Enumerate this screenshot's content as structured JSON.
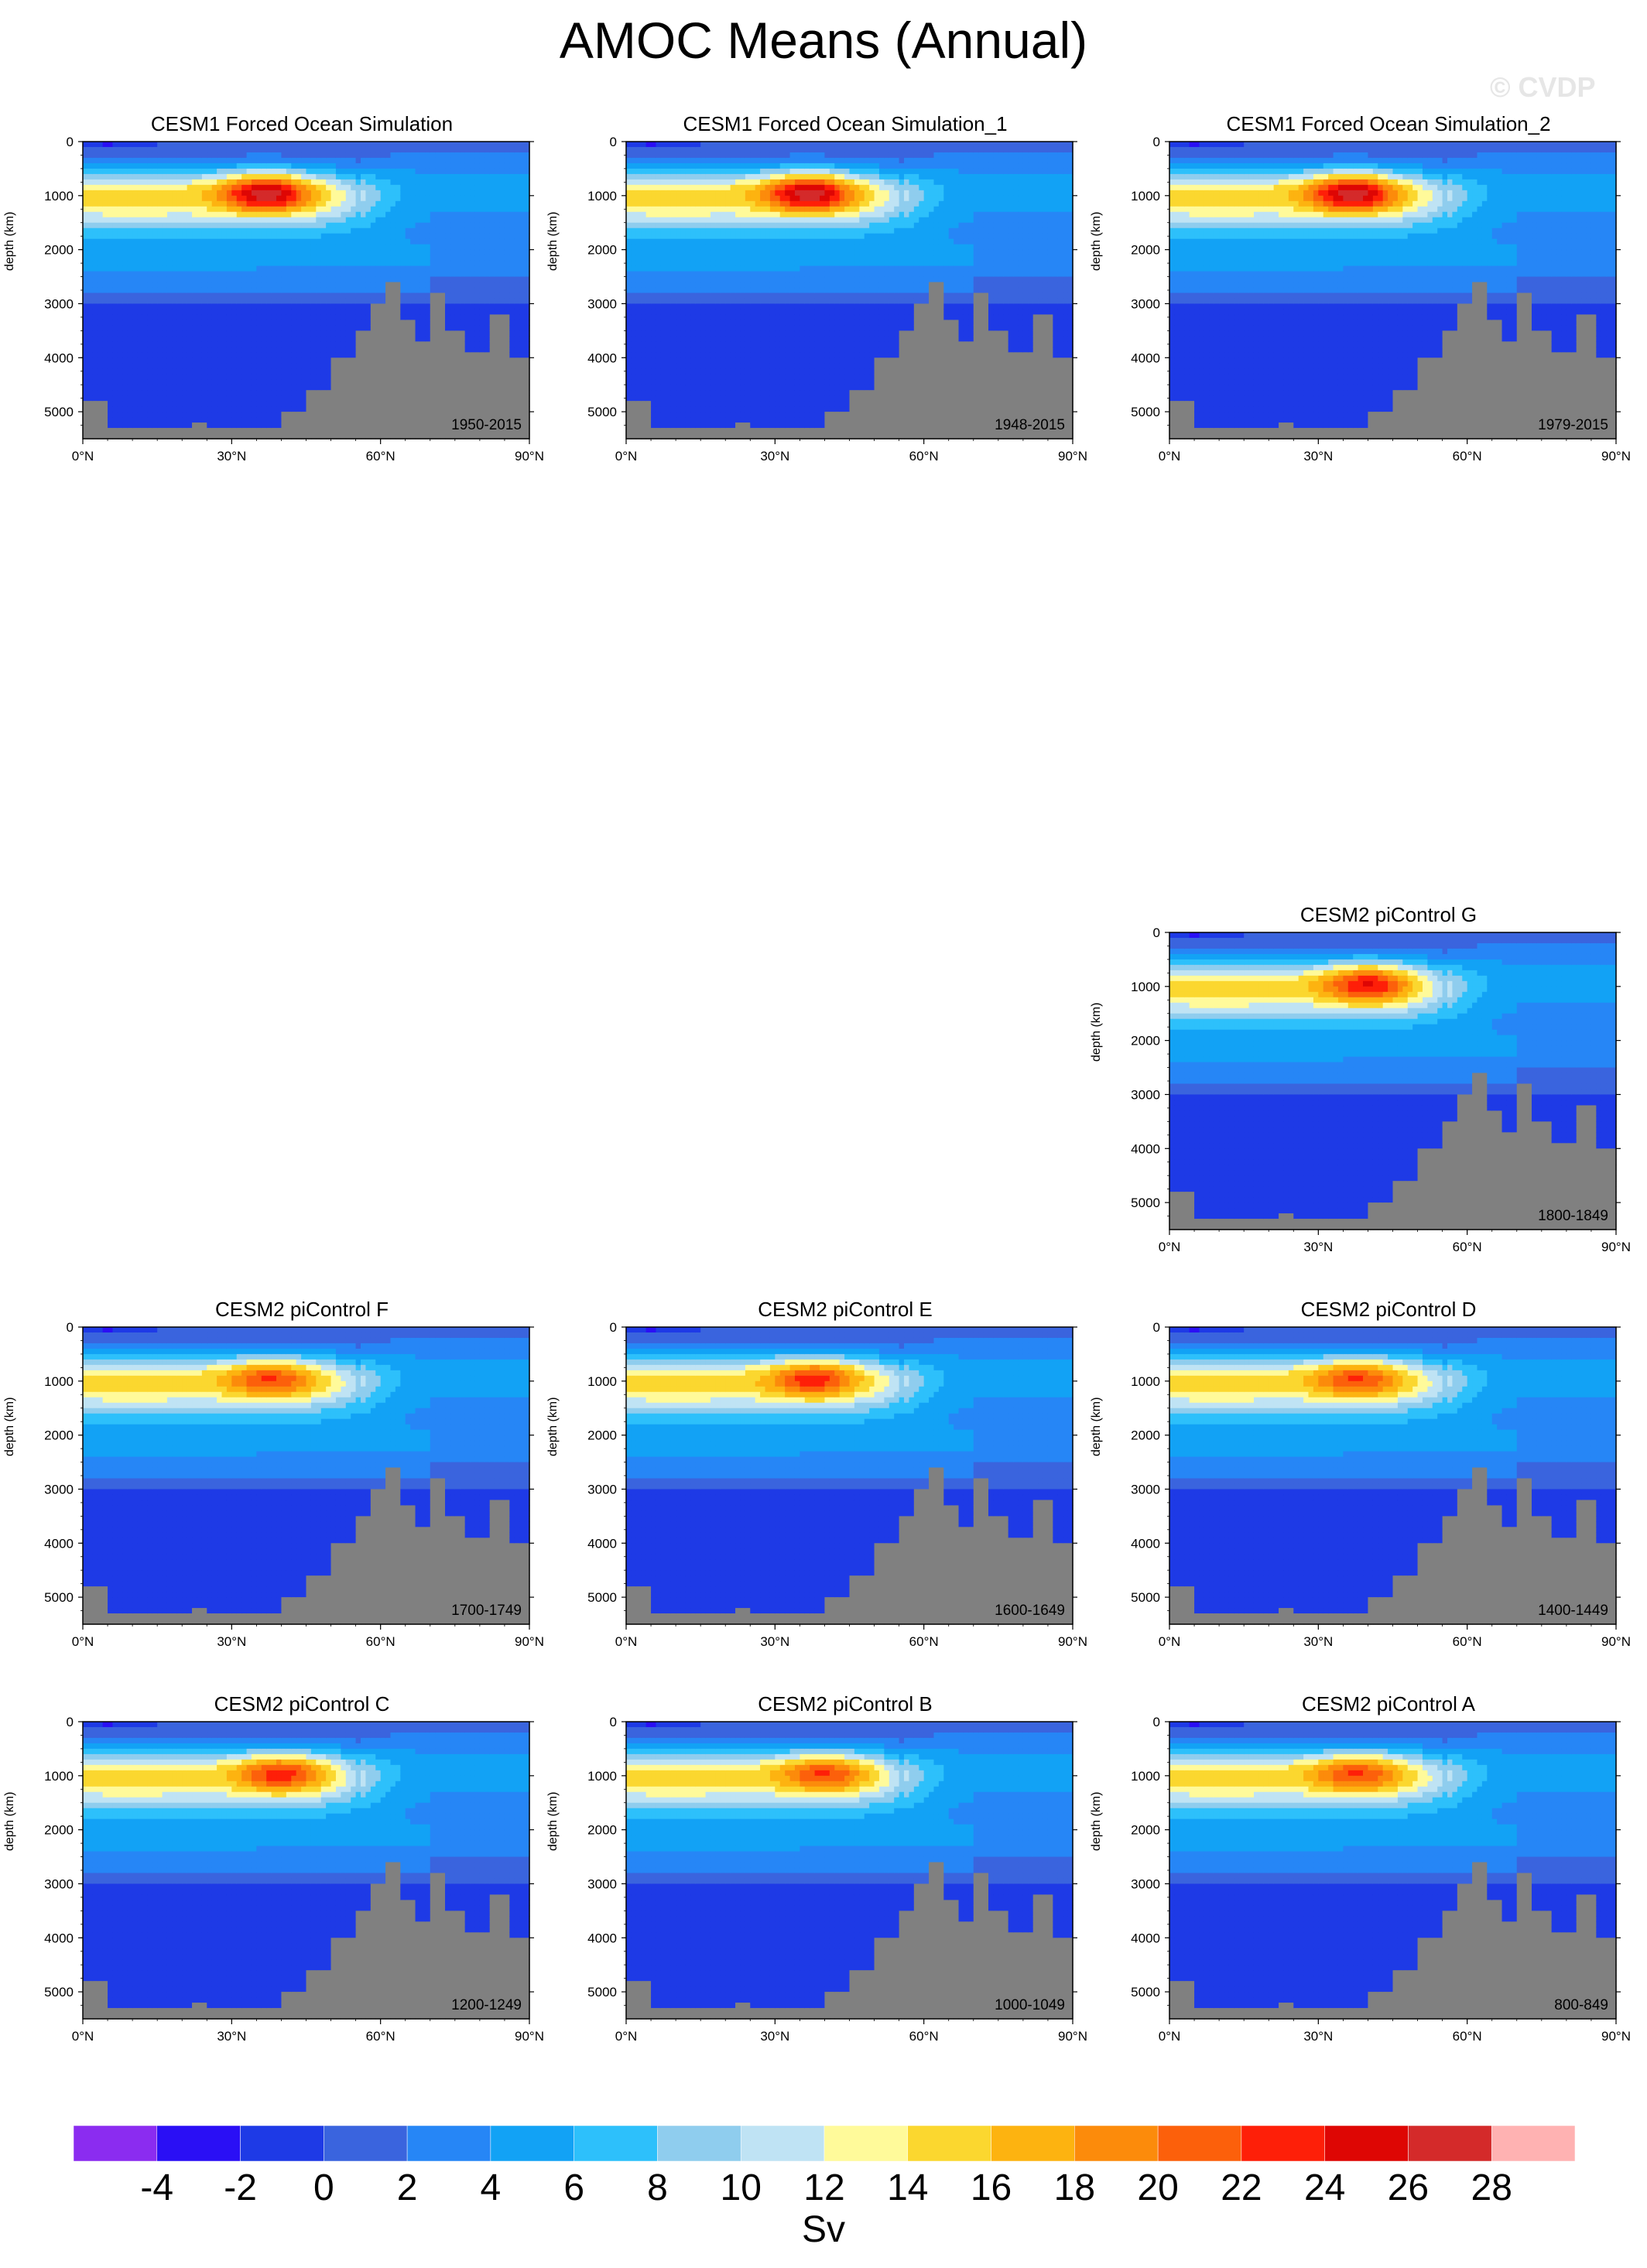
{
  "title": "AMOC Means (Annual)",
  "watermark": "© CVDP",
  "colors": {
    "land": "#808080",
    "levels": [
      "#8b2cf0",
      "#2a0ff5",
      "#1e3ae6",
      "#3a64de",
      "#2686f6",
      "#12a2f5",
      "#2dc0fb",
      "#8fcdee",
      "#bfe3f4",
      "#fffa9a",
      "#fbd72f",
      "#fdb310",
      "#fc8b0b",
      "#fc600b",
      "#fe1f08",
      "#de0604",
      "#d42a2a",
      "#ffb2b2"
    ]
  },
  "chart_data": [
    {
      "type": "contour",
      "title": "CESM1 Forced Ocean Simulation",
      "period": "1950-2015",
      "max": 28,
      "core_lat": 37,
      "ylabel": "depth (km)",
      "xlabel": "",
      "xticks": [
        "0°N",
        "30°N",
        "60°N",
        "90°N"
      ],
      "yticks": [
        "0",
        "1000",
        "2000",
        "3000",
        "4000",
        "5000"
      ]
    },
    {
      "type": "contour",
      "title": "CESM1 Forced Ocean Simulation_1",
      "period": "1948-2015",
      "max": 28,
      "core_lat": 37,
      "ylabel": "depth (km)",
      "xlabel": "",
      "xticks": [
        "0°N",
        "30°N",
        "60°N",
        "90°N"
      ],
      "yticks": [
        "0",
        "1000",
        "2000",
        "3000",
        "4000",
        "5000"
      ]
    },
    {
      "type": "contour",
      "title": "CESM1 Forced Ocean Simulation_2",
      "period": "1979-2015",
      "max": 28,
      "core_lat": 37,
      "ylabel": "depth (km)",
      "xlabel": "",
      "xticks": [
        "0°N",
        "30°N",
        "60°N",
        "90°N"
      ],
      "yticks": [
        "0",
        "1000",
        "2000",
        "3000",
        "4000",
        "5000"
      ]
    },
    {
      "type": "contour",
      "title": "CESM2 piControl G",
      "period": "1800-1849",
      "max": 25,
      "core_lat": 40,
      "ylabel": "depth (km)",
      "xlabel": "",
      "xticks": [
        "0°N",
        "30°N",
        "60°N",
        "90°N"
      ],
      "yticks": [
        "0",
        "1000",
        "2000",
        "3000",
        "4000",
        "5000"
      ]
    },
    {
      "type": "contour",
      "title": "CESM2 piControl F",
      "period": "1700-1749",
      "max": 23,
      "core_lat": 38,
      "ylabel": "depth (km)",
      "xlabel": "",
      "xticks": [
        "0°N",
        "30°N",
        "60°N",
        "90°N"
      ],
      "yticks": [
        "0",
        "1000",
        "2000",
        "3000",
        "4000",
        "5000"
      ]
    },
    {
      "type": "contour",
      "title": "CESM2 piControl E",
      "period": "1600-1649",
      "max": 24,
      "core_lat": 38,
      "ylabel": "depth (km)",
      "xlabel": "",
      "xticks": [
        "0°N",
        "30°N",
        "60°N",
        "90°N"
      ],
      "yticks": [
        "0",
        "1000",
        "2000",
        "3000",
        "4000",
        "5000"
      ]
    },
    {
      "type": "contour",
      "title": "CESM2 piControl D",
      "period": "1400-1449",
      "max": 23,
      "core_lat": 38,
      "ylabel": "depth (km)",
      "xlabel": "",
      "xticks": [
        "0°N",
        "30°N",
        "60°N",
        "90°N"
      ],
      "yticks": [
        "0",
        "1000",
        "2000",
        "3000",
        "4000",
        "5000"
      ]
    },
    {
      "type": "contour",
      "title": "CESM2 piControl C",
      "period": "1200-1249",
      "max": 24,
      "core_lat": 40,
      "ylabel": "depth (km)",
      "xlabel": "",
      "xticks": [
        "0°N",
        "30°N",
        "60°N",
        "90°N"
      ],
      "yticks": [
        "0",
        "1000",
        "2000",
        "3000",
        "4000",
        "5000"
      ]
    },
    {
      "type": "contour",
      "title": "CESM2 piControl B",
      "period": "1000-1049",
      "max": 23,
      "core_lat": 40,
      "ylabel": "depth (km)",
      "xlabel": "",
      "xticks": [
        "0°N",
        "30°N",
        "60°N",
        "90°N"
      ],
      "yticks": [
        "0",
        "1000",
        "2000",
        "3000",
        "4000",
        "5000"
      ]
    },
    {
      "type": "contour",
      "title": "CESM2 piControl A",
      "period": "800-849",
      "max": 23,
      "core_lat": 38,
      "ylabel": "depth (km)",
      "xlabel": "",
      "xticks": [
        "0°N",
        "30°N",
        "60°N",
        "90°N"
      ],
      "yticks": [
        "0",
        "1000",
        "2000",
        "3000",
        "4000",
        "5000"
      ]
    }
  ],
  "colorbar": {
    "ticks": [
      "-4",
      "-2",
      "0",
      "2",
      "4",
      "6",
      "8",
      "10",
      "12",
      "14",
      "16",
      "18",
      "20",
      "22",
      "24",
      "26",
      "28"
    ],
    "unit": "Sv"
  }
}
